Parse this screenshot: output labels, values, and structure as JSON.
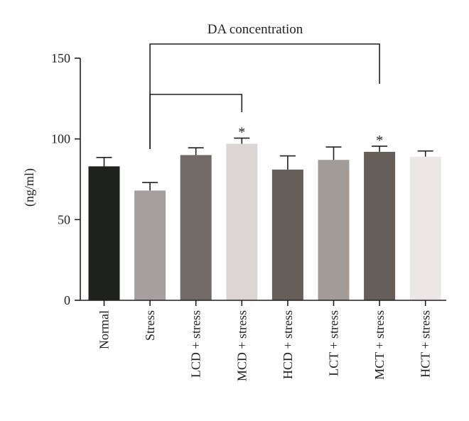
{
  "chart_data": {
    "type": "bar",
    "title": "DA concentration",
    "ylabel": "(ng/ml)",
    "xlabel": "",
    "ylim": [
      0,
      150
    ],
    "yticks": [
      0,
      50,
      100,
      150
    ],
    "categories": [
      "Normal",
      "Stress",
      "LCD + stress",
      "MCD + stress",
      "HCD + stress",
      "LCT + stress",
      "MCT + stress",
      "HCT + stress"
    ],
    "values": [
      83,
      68,
      90,
      97,
      81,
      87,
      92,
      89
    ],
    "errors": [
      5.5,
      5,
      4.5,
      3.5,
      8.5,
      8,
      3.5,
      3.5
    ],
    "bar_colors": [
      "#1e211c",
      "#a59f9f",
      "#726a67",
      "#dbd5d3",
      "#655d58",
      "#a29c99",
      "#655d58",
      "#ece6e6"
    ],
    "significance": [
      {
        "category": "MCD + stress",
        "label": "*"
      },
      {
        "category": "MCT + stress",
        "label": "*"
      }
    ],
    "comparisons": [
      {
        "from": "Stress",
        "to": "MCD + stress"
      },
      {
        "from": "Stress",
        "to": "MCT + stress"
      }
    ],
    "grid": false,
    "legend": "none"
  }
}
